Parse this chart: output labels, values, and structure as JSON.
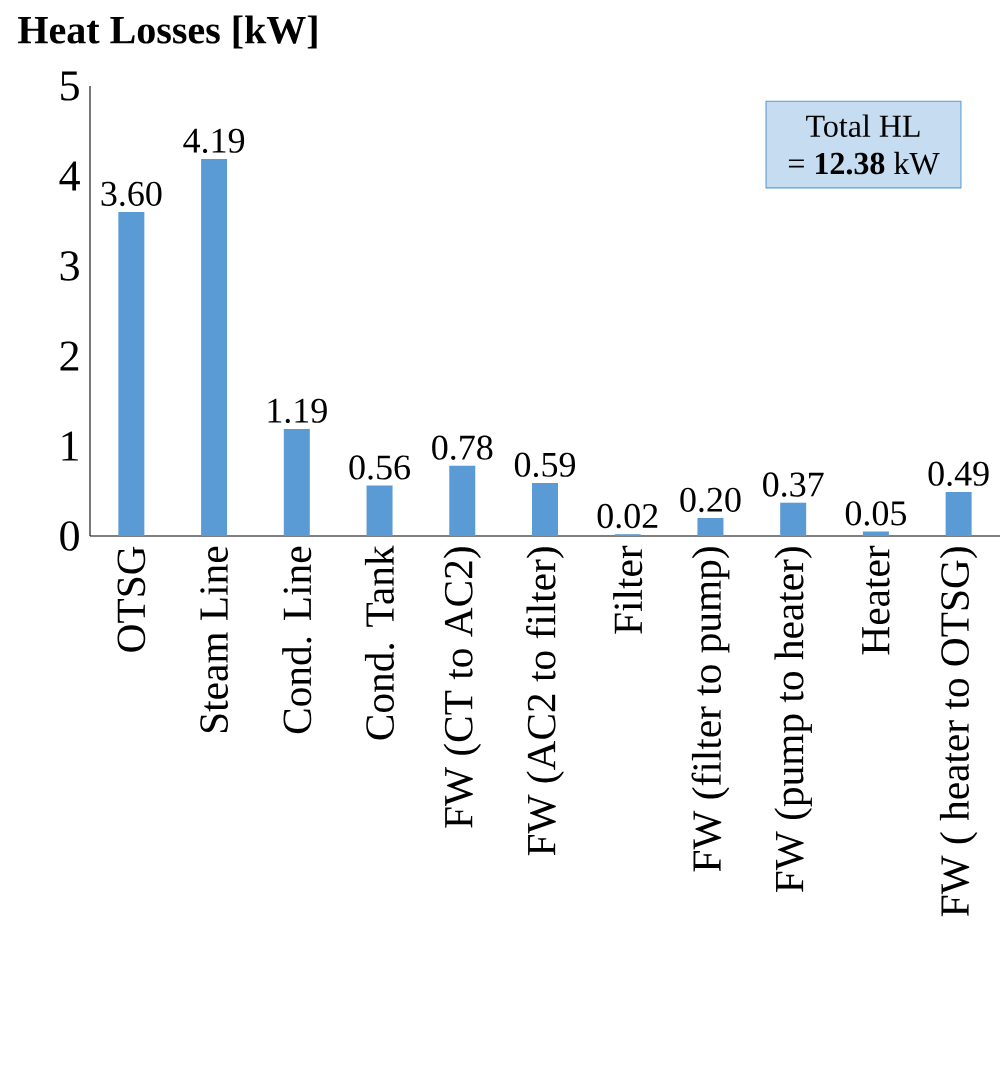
{
  "chart_data": {
    "type": "bar",
    "title": "Heat Losses [kW]",
    "categories": [
      "OTSG",
      "Steam Line",
      "Cond. Line",
      "Cond. Tank",
      "FW (CT to AC2)",
      "FW (AC2 to filter)",
      "Filter",
      "FW (filter to pump)",
      "FW (pump to heater)",
      "Heater",
      "FW ( heater to OTSG)"
    ],
    "values": [
      3.6,
      4.19,
      1.19,
      0.56,
      0.78,
      0.59,
      0.02,
      0.2,
      0.37,
      0.05,
      0.49
    ],
    "value_labels": [
      "3.60",
      "4.19",
      "1.19",
      "0.56",
      "0.78",
      "0.59",
      "0.02",
      "0.20",
      "0.37",
      "0.05",
      "0.49"
    ],
    "color": "#5b9bd5",
    "ylim": [
      0,
      5
    ],
    "yticks": [
      0,
      1,
      2,
      3,
      4,
      5
    ],
    "annotations": [
      "Total HL",
      "= **12.38** kW"
    ]
  }
}
